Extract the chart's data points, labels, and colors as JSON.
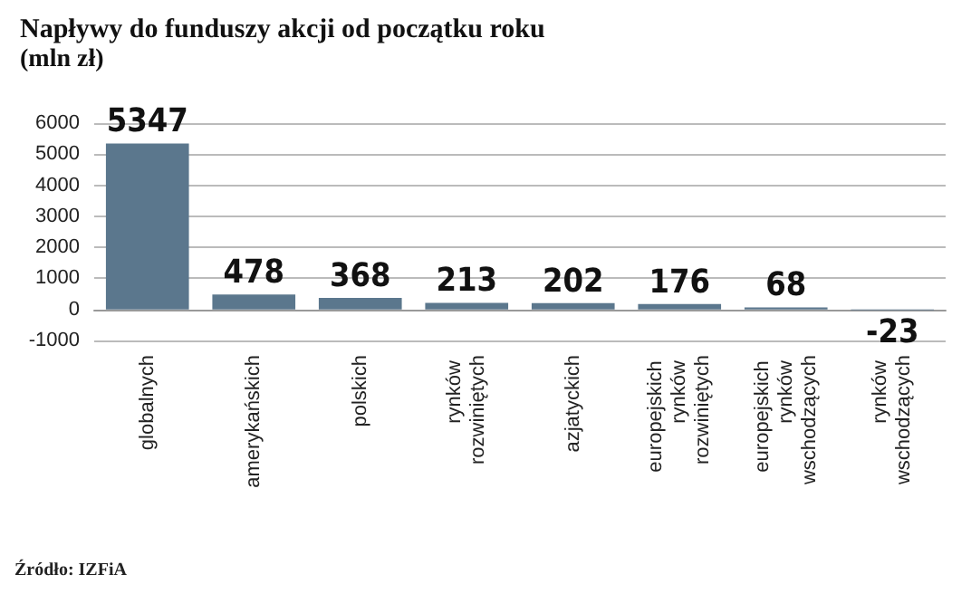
{
  "chart_data": {
    "type": "bar",
    "title": "Napływy do funduszy akcji od początku roku",
    "subtitle": "(mln zł)",
    "categories": [
      "globalnych",
      "amerykańskich",
      "polskich",
      "rynków rozwiniętych",
      "azjatyckich",
      "europejskich rynków rozwiniętych",
      "europejskich rynków wschodzących",
      "rynków wschodzących"
    ],
    "values": [
      5347,
      478,
      368,
      213,
      202,
      176,
      68,
      -23
    ],
    "color": "#5b778d",
    "ylim": [
      -1000,
      6000
    ],
    "yticks": [
      -1000,
      0,
      1000,
      2000,
      3000,
      4000,
      5000,
      6000
    ],
    "grid": "y",
    "data_labels": true,
    "annotations": [
      "Źródło: IZFiA"
    ]
  }
}
